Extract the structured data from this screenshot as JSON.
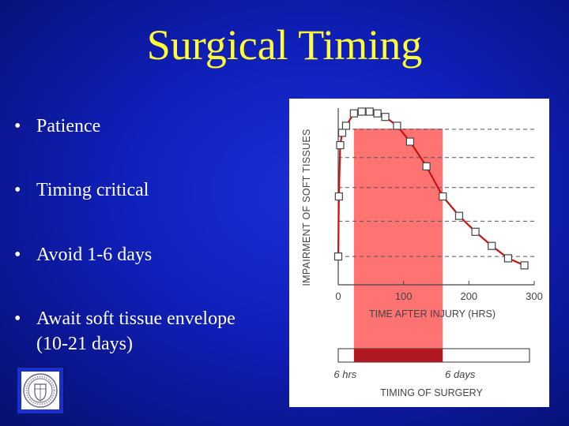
{
  "slide": {
    "title": "Surgical Timing",
    "bullets": [
      {
        "line1": "Patience"
      },
      {
        "line1": "Timing critical"
      },
      {
        "line1": "Avoid 1-6 days"
      },
      {
        "line1": "Await soft tissue envelope",
        "line2": "(10-21 days)"
      }
    ],
    "bullet_symbol": "•"
  },
  "colors": {
    "title": "#ffff33",
    "background": "#0f1fb8",
    "series": "#cc1111",
    "highlight": "#ff5a5a"
  },
  "chart_data": {
    "type": "line",
    "xlabel": "TIME AFTER INJURY (HRS)",
    "ylabel": "IMPAIRMENT OF SOFT TISSUES",
    "xlim": [
      0,
      300
    ],
    "xticks": [
      0,
      100,
      200,
      300
    ],
    "grid": "horizontal dashed",
    "series": [
      {
        "x": [
          0,
          1,
          3,
          6,
          12,
          24,
          36,
          48,
          60,
          72,
          90,
          110,
          135,
          160,
          185,
          210,
          235,
          260,
          285
        ],
        "y": [
          0.16,
          0.5,
          0.79,
          0.86,
          0.9,
          0.97,
          0.98,
          0.98,
          0.97,
          0.95,
          0.9,
          0.81,
          0.67,
          0.5,
          0.39,
          0.3,
          0.22,
          0.15,
          0.11
        ]
      }
    ],
    "highlight_band": {
      "x_start": 24,
      "x_end": 160
    },
    "surgery_timing_bar": {
      "title": "TIMING OF SURGERY",
      "labels": [
        "6 hrs",
        "6 days"
      ],
      "highlight_start": 24,
      "highlight_end": 160
    }
  }
}
